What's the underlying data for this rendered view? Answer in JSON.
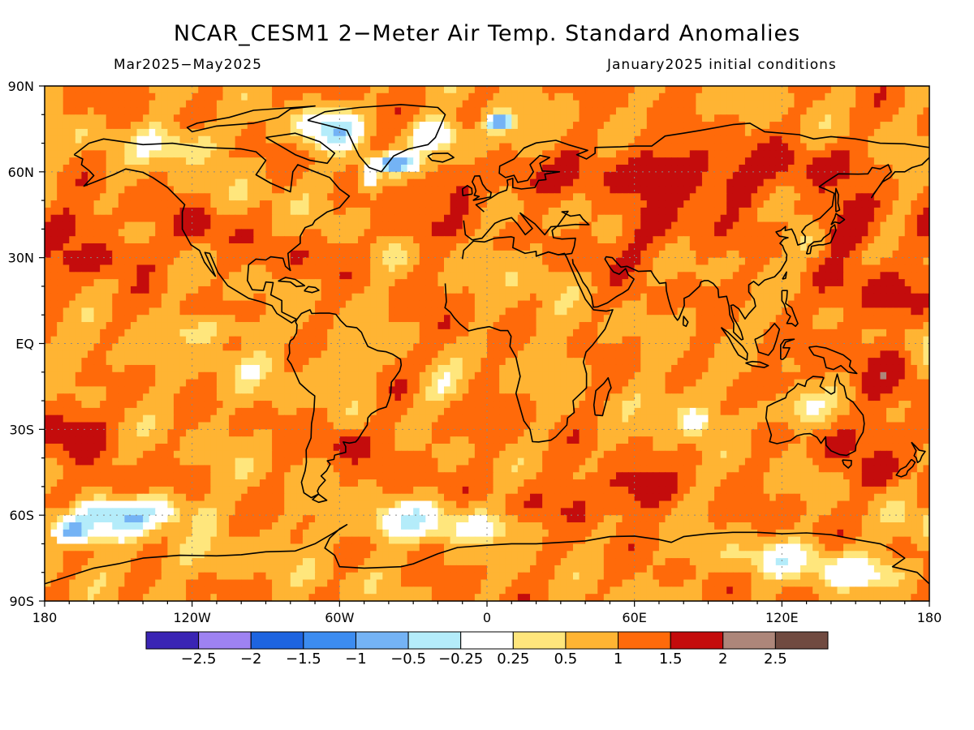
{
  "title": "NCAR_CESM1 2−Meter Air Temp. Standard Anomalies",
  "subtitle_left": "Mar2025−May2025",
  "subtitle_right": "January2025 initial conditions",
  "lat_labels": [
    {
      "lat": 90,
      "label": "90N"
    },
    {
      "lat": 60,
      "label": "60N"
    },
    {
      "lat": 30,
      "label": "30N"
    },
    {
      "lat": 0,
      "label": "EQ"
    },
    {
      "lat": -30,
      "label": "30S"
    },
    {
      "lat": -60,
      "label": "60S"
    },
    {
      "lat": -90,
      "label": "90S"
    }
  ],
  "lon_labels": [
    {
      "lon": -180,
      "label": "180"
    },
    {
      "lon": -120,
      "label": "120W"
    },
    {
      "lon": -60,
      "label": "60W"
    },
    {
      "lon": 0,
      "label": "0"
    },
    {
      "lon": 60,
      "label": "60E"
    },
    {
      "lon": 120,
      "label": "120E"
    },
    {
      "lon": 180,
      "label": "180"
    }
  ],
  "colorbar": {
    "colors": [
      "#3a24b4",
      "#9e82f2",
      "#1e64e0",
      "#3c8cf0",
      "#74b3f5",
      "#b4ecfa",
      "#ffffff",
      "#ffe67c",
      "#ffb433",
      "#ff6a0a",
      "#c40c0c",
      "#ad867a",
      "#704a40"
    ],
    "tick_labels": [
      "−2.5",
      "−2",
      "−1.5",
      "−1",
      "−0.5",
      "−0.25",
      "0.25",
      "0.5",
      "1",
      "1.5",
      "2",
      "2.5"
    ]
  },
  "color_scale": {
    "thresholds": [
      -2.5,
      -2,
      -1.5,
      -1,
      -0.5,
      -0.25,
      0.25,
      0.5,
      1,
      1.5,
      2,
      2.5
    ]
  }
}
